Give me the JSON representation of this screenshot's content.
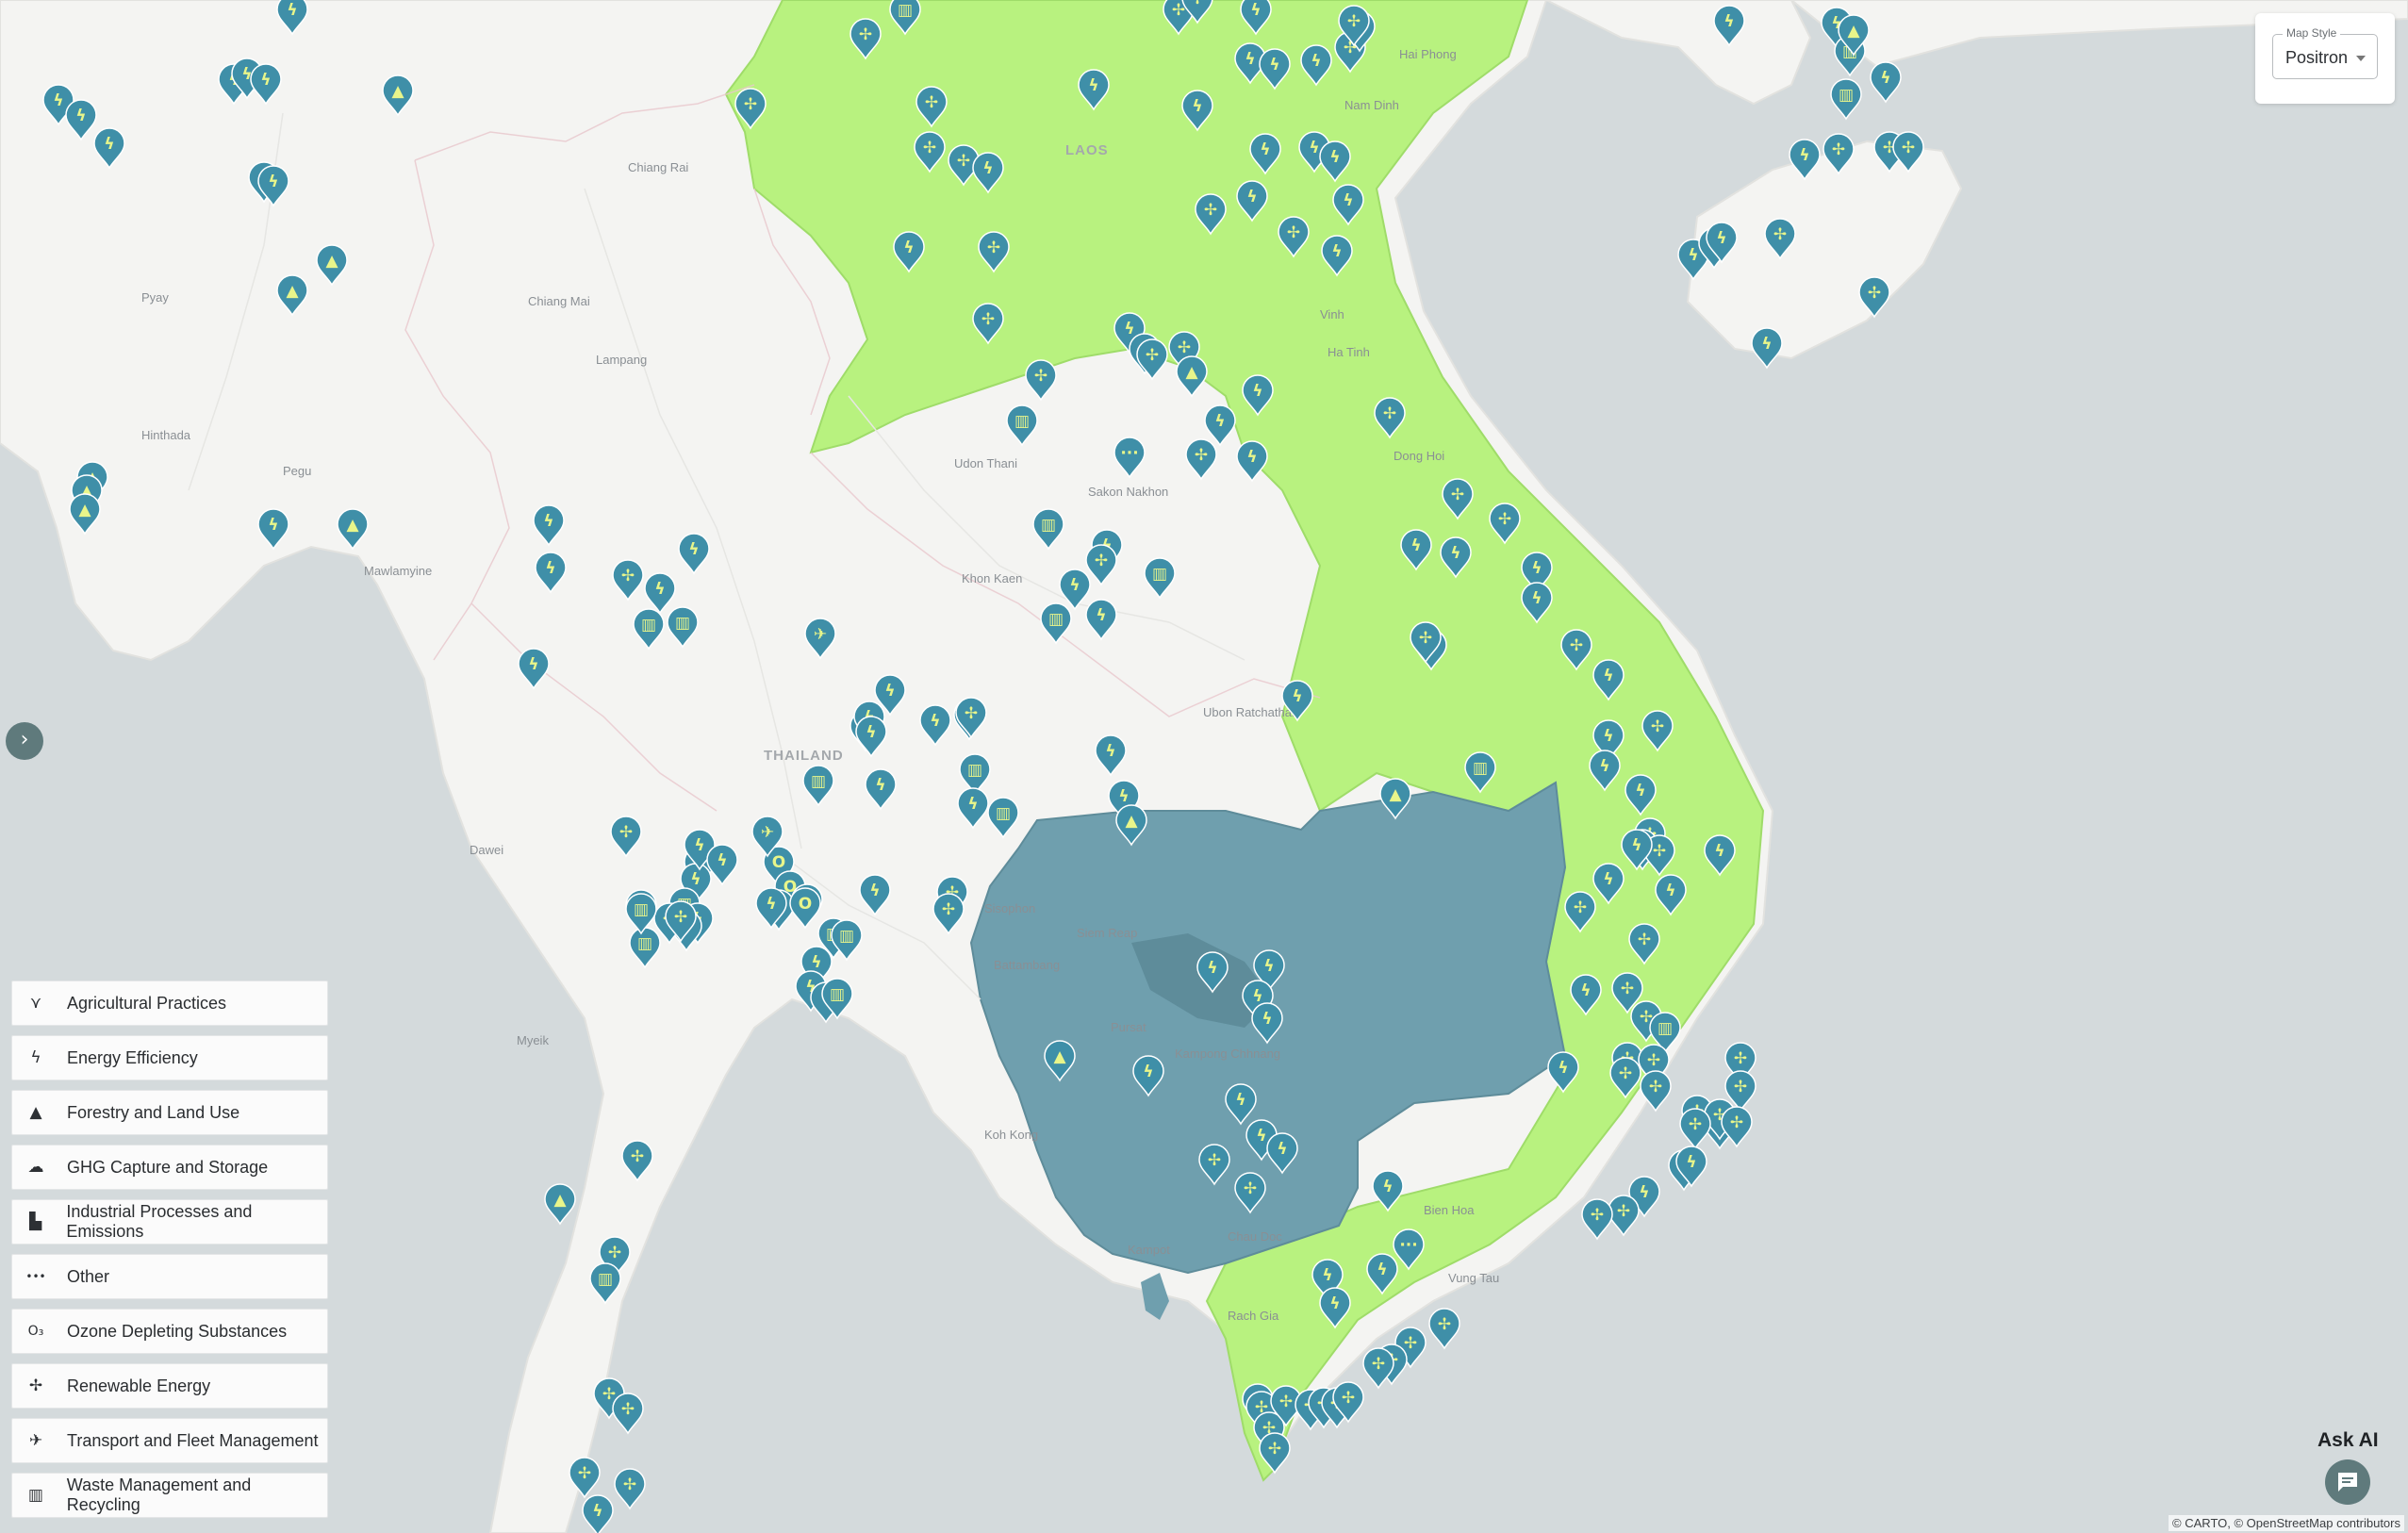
{
  "map_style": {
    "legend": "Map Style",
    "selected": "Positron"
  },
  "colors": {
    "water": "#d4dadc",
    "land": "#f4f4f2",
    "highlight_green": "#b8f27f",
    "highlight_blue": "#6f9fae",
    "pin": "#3f8fa8",
    "pin_glyph": "#e8f58a"
  },
  "panel_toggle": {
    "icon": "chevron-right-icon",
    "glyph": "›"
  },
  "places": [
    "Chiang Rai",
    "Chiang Mai",
    "Lampang",
    "Pyay",
    "Hinthada",
    "Pegu",
    "Mawlamyine",
    "Dawei",
    "Myeik",
    "Udon Thani",
    "Sakon Nakhon",
    "Khon Kaen",
    "Ubon Ratchathani",
    "THAILAND",
    "Sisophon",
    "Siem Reap",
    "Battambang",
    "Pursat",
    "Kampong Chhnang",
    "Koh Kong",
    "Kampot",
    "Chau Doc",
    "Rach Gia",
    "Bien Hoa",
    "Vung Tau",
    "Nam Dinh",
    "Hai Phong",
    "Vinh",
    "Ha Tinh",
    "Dong Hoi",
    "LAOS"
  ],
  "categories": [
    {
      "label": "Agricultural Practices",
      "icon": "sprout-icon",
      "glyph": "⋎"
    },
    {
      "label": "Energy Efficiency",
      "icon": "lightning-icon",
      "glyph": "ϟ"
    },
    {
      "label": "Forestry and Land Use",
      "icon": "tree-icon",
      "glyph": "▲"
    },
    {
      "label": "GHG Capture and Storage",
      "icon": "cloud-capture-icon",
      "glyph": "☁"
    },
    {
      "label": "Industrial Processes and Emissions",
      "icon": "factory-icon",
      "glyph": "▙"
    },
    {
      "label": "Other",
      "icon": "more-dots-icon",
      "glyph": "•••"
    },
    {
      "label": "Ozone Depleting Substances",
      "icon": "ozone-molecule-icon",
      "glyph": "O₃"
    },
    {
      "label": "Renewable Energy",
      "icon": "wind-turbine-icon",
      "glyph": "✢"
    },
    {
      "label": "Transport and Fleet Management",
      "icon": "airplane-icon",
      "glyph": "✈"
    },
    {
      "label": "Waste Management and Recycling",
      "icon": "trash-icon",
      "glyph": "▥"
    }
  ],
  "ask_ai": {
    "label": "Ask AI",
    "icon": "chat-icon"
  },
  "attribution": "© CARTO, © OpenStreetMap contributors"
}
